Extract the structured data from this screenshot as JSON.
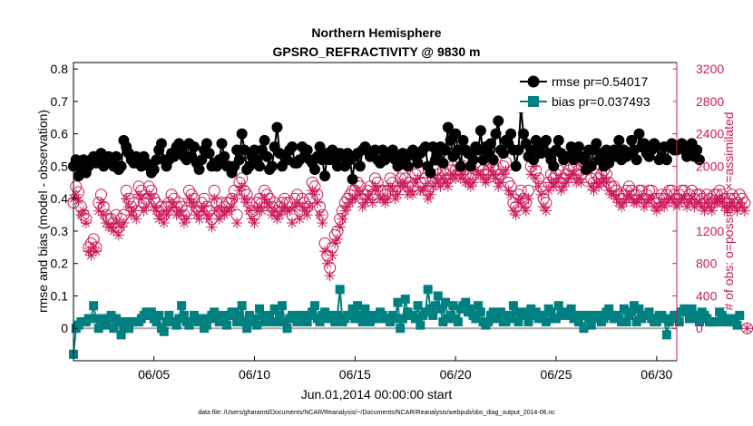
{
  "chart_data": {
    "type": "line",
    "title": "Northern Hemisphere",
    "subtitle": "GPSRO_REFRACTIVITY @ 9830 m",
    "xlabel": "Jun.01,2014 00:00:00 start",
    "ylabel": "rmse and bias (model - observation)",
    "ylabel_right": "# of obs: o=possible; ×=assimilated",
    "footnote": "data file: /Users/gharamti/Documents/NCAR/Reanalysis/~/Documents/NCAR/Reanalysis/webpub/obs_diag_output_2014-06.nc",
    "xlim": [
      1,
      31
    ],
    "ylim": [
      -0.1,
      0.82
    ],
    "ylim_right": [
      -400,
      3280
    ],
    "x_ticks": [
      {
        "value": 5,
        "label": "06/05"
      },
      {
        "value": 10,
        "label": "06/10"
      },
      {
        "value": 15,
        "label": "06/15"
      },
      {
        "value": 20,
        "label": "06/20"
      },
      {
        "value": 25,
        "label": "06/25"
      },
      {
        "value": 30,
        "label": "06/30"
      }
    ],
    "y_ticks": [
      "0",
      "0.1",
      "0.2",
      "0.3",
      "0.4",
      "0.5",
      "0.6",
      "0.7",
      "0.8"
    ],
    "y_ticks_right": [
      "0",
      "400",
      "800",
      "1200",
      "1600",
      "2000",
      "2400",
      "2800",
      "3200"
    ],
    "legend": [
      {
        "key": "rmse",
        "label": "rmse pr=0.54017"
      },
      {
        "key": "bias",
        "label": "bias pr=0.037493"
      }
    ],
    "legend_position": "top-right",
    "colors": {
      "rmse": "#000000",
      "bias": "#008080",
      "obs": "#cc1a5b",
      "zero": "#aaaaaa"
    },
    "x_start": 1.0,
    "x_step": 0.125,
    "series": [
      {
        "name": "rmse",
        "axis": "left",
        "marker": "circle",
        "values": [
          0.5,
          0.52,
          0.47,
          0.5,
          0.52,
          0.48,
          0.5,
          0.52,
          0.53,
          0.51,
          0.52,
          0.54,
          0.5,
          0.51,
          0.53,
          0.52,
          0.5,
          0.53,
          0.49,
          0.5,
          0.58,
          0.56,
          0.54,
          0.52,
          0.51,
          0.53,
          0.52,
          0.5,
          0.53,
          0.51,
          0.5,
          0.48,
          0.49,
          0.52,
          0.55,
          0.57,
          0.52,
          0.5,
          0.52,
          0.54,
          0.53,
          0.56,
          0.57,
          0.55,
          0.53,
          0.52,
          0.57,
          0.53,
          0.56,
          0.51,
          0.49,
          0.52,
          0.55,
          0.57,
          0.54,
          0.5,
          0.51,
          0.5,
          0.52,
          0.57,
          0.53,
          0.5,
          0.5,
          0.48,
          0.5,
          0.55,
          0.52,
          0.6,
          0.55,
          0.49,
          0.5,
          0.53,
          0.55,
          0.52,
          0.5,
          0.55,
          0.58,
          0.53,
          0.49,
          0.5,
          0.56,
          0.62,
          0.54,
          0.5,
          0.53,
          0.52,
          0.55,
          0.56,
          0.51,
          0.51,
          0.52,
          0.56,
          0.53,
          0.55,
          0.52,
          0.51,
          0.49,
          0.53,
          0.56,
          0.52,
          0.47,
          0.54,
          0.52,
          0.55,
          0.53,
          0.5,
          0.54,
          0.53,
          0.5,
          0.54,
          0.52,
          0.46,
          0.53,
          0.54,
          0.5,
          0.55,
          0.56,
          0.55,
          0.53,
          0.54,
          0.55,
          0.52,
          0.51,
          0.55,
          0.52,
          0.53,
          0.54,
          0.55,
          0.52,
          0.5,
          0.53,
          0.54,
          0.52,
          0.5,
          0.54,
          0.55,
          0.53,
          0.51,
          0.54,
          0.55,
          0.56,
          0.5,
          0.48,
          0.56,
          0.52,
          0.54,
          0.56,
          0.51,
          0.55,
          0.62,
          0.58,
          0.53,
          0.6,
          0.55,
          0.5,
          0.58,
          0.55,
          0.54,
          0.5,
          0.52,
          0.56,
          0.55,
          0.61,
          0.52,
          0.56,
          0.54,
          0.57,
          0.52,
          0.6,
          0.64,
          0.55,
          0.54,
          0.58,
          0.57,
          0.6,
          0.55,
          0.5,
          0.55,
          0.68,
          0.6,
          0.57,
          0.53,
          0.55,
          0.52,
          0.58,
          0.55,
          0.54,
          0.57,
          0.58,
          0.54,
          0.52,
          0.5,
          0.55,
          0.58,
          0.54,
          0.52,
          0.53,
          0.53,
          0.56,
          0.52,
          0.54,
          0.56,
          0.53,
          0.52,
          0.49,
          0.55,
          0.5,
          0.55,
          0.57,
          0.52,
          0.54,
          0.5,
          0.55,
          0.51,
          0.53,
          0.55,
          0.53,
          0.58,
          0.52,
          0.55,
          0.53,
          0.54,
          0.58,
          0.55,
          0.52,
          0.6,
          0.56,
          0.57,
          0.54,
          0.53,
          0.55,
          0.57,
          0.56,
          0.52,
          0.53,
          0.56,
          0.52,
          0.56,
          0.57,
          0.55,
          0.55,
          0.56,
          0.57,
          0.55,
          0.53,
          0.54,
          0.57,
          0.53,
          0.55,
          0.52
        ]
      },
      {
        "name": "bias",
        "axis": "left",
        "marker": "square",
        "values": [
          -0.08,
          0.0,
          0.01,
          0.02,
          0.02,
          0.02,
          0.03,
          0.03,
          0.07,
          0.03,
          0.0,
          0.03,
          0.02,
          0.01,
          0.03,
          0.04,
          0.0,
          0.03,
          0.02,
          -0.02,
          0.0,
          0.02,
          0.0,
          0.02,
          0.02,
          0.02,
          0.02,
          0.03,
          0.04,
          0.05,
          0.04,
          0.05,
          0.03,
          0.02,
          0.04,
          0.0,
          -0.01,
          0.02,
          0.04,
          0.02,
          0.02,
          0.01,
          0.03,
          0.07,
          0.04,
          0.02,
          0.01,
          0.02,
          0.04,
          0.03,
          0.02,
          0.03,
          0.0,
          0.01,
          0.03,
          0.04,
          0.05,
          0.03,
          0.02,
          0.04,
          0.03,
          0.01,
          0.04,
          0.05,
          0.05,
          0.02,
          0.04,
          0.07,
          0.02,
          0.0,
          0.04,
          0.02,
          0.03,
          0.01,
          0.06,
          0.04,
          0.02,
          0.03,
          0.04,
          0.02,
          0.06,
          0.02,
          0.04,
          0.07,
          0.02,
          0.0,
          0.03,
          0.04,
          0.03,
          0.02,
          0.04,
          0.04,
          0.02,
          0.02,
          0.04,
          0.05,
          0.07,
          0.03,
          0.02,
          0.04,
          0.05,
          0.03,
          0.04,
          0.04,
          0.02,
          0.04,
          0.12,
          0.02,
          0.03,
          0.04,
          0.04,
          0.06,
          0.03,
          0.07,
          0.04,
          0.02,
          0.06,
          0.04,
          0.02,
          0.04,
          0.03,
          0.03,
          0.05,
          0.04,
          0.03,
          0.03,
          0.02,
          0.04,
          0.03,
          0.08,
          0.0,
          0.03,
          0.09,
          0.05,
          0.04,
          0.04,
          0.03,
          0.07,
          0.01,
          0.04,
          0.05,
          0.12,
          0.06,
          0.04,
          0.07,
          0.1,
          0.06,
          0.02,
          0.08,
          0.03,
          0.04,
          0.07,
          0.03,
          0.02,
          0.06,
          0.07,
          0.08,
          0.05,
          0.06,
          0.04,
          0.03,
          0.07,
          0.05,
          0.02,
          0.01,
          0.02,
          0.04,
          0.05,
          0.03,
          0.04,
          0.05,
          0.02,
          0.02,
          0.04,
          0.03,
          0.07,
          0.05,
          0.02,
          0.04,
          0.05,
          0.04,
          0.02,
          0.06,
          0.04,
          0.05,
          0.03,
          0.04,
          0.04,
          0.02,
          0.06,
          0.05,
          0.03,
          0.03,
          0.07,
          0.04,
          0.05,
          0.05,
          0.04,
          0.06,
          0.03,
          0.04,
          0.02,
          0.04,
          0.0,
          0.04,
          0.03,
          0.01,
          0.04,
          0.03,
          0.04,
          0.02,
          0.03,
          0.05,
          0.06,
          0.04,
          0.03,
          0.04,
          0.03,
          0.02,
          0.06,
          0.02,
          0.04,
          0.05,
          0.07,
          0.02,
          0.06,
          0.03,
          0.04,
          0.04,
          0.05,
          0.03,
          0.02,
          0.02,
          0.04,
          0.04,
          0.03,
          -0.02,
          0.02,
          0.03,
          0.04,
          0.04,
          0.02,
          0.05,
          0.06,
          0.05,
          0.03,
          0.06,
          0.04,
          0.03,
          0.02,
          0.05,
          0.04,
          0.03,
          0.02,
          0.02,
          0.02,
          0.02,
          0.05,
          0.04,
          0.02,
          0.03,
          0.02,
          0.02,
          0.03,
          0.01,
          0.04
        ]
      },
      {
        "name": "possible",
        "axis": "right",
        "marker": "open-circle",
        "values": [
          1550,
          1750,
          1680,
          1500,
          1400,
          1350,
          1000,
          1050,
          1100,
          1000,
          1550,
          1650,
          1500,
          1400,
          1350,
          1350,
          1300,
          1400,
          1250,
          1350,
          1400,
          1700,
          1600,
          1500,
          1550,
          1450,
          1750,
          1700,
          1550,
          1600,
          1750,
          1700,
          1600,
          1550,
          1450,
          1500,
          1400,
          1500,
          1550,
          1650,
          1600,
          1500,
          1550,
          1500,
          1400,
          1450,
          1700,
          1650,
          1600,
          1500,
          1450,
          1550,
          1600,
          1500,
          1450,
          1350,
          1700,
          1550,
          1450,
          1550,
          1500,
          1550,
          1550,
          1600,
          1700,
          1400,
          1800,
          1850,
          1700,
          1650,
          1550,
          1450,
          1400,
          1550,
          1600,
          1550,
          1700,
          1650,
          1600,
          1500,
          1550,
          1450,
          1500,
          1550,
          1600,
          1550,
          1550,
          1400,
          1600,
          1650,
          1450,
          1600,
          1550,
          1500,
          1600,
          1800,
          1750,
          1650,
          1500,
          1400,
          1050,
          900,
          750,
          1000,
          1150,
          1200,
          1350,
          1450,
          1550,
          1600,
          1650,
          1700,
          1700,
          1800,
          1750,
          1600,
          1650,
          1700,
          1750,
          1650,
          1850,
          1800,
          1700,
          1700,
          1650,
          1700,
          1850,
          1800,
          1700,
          1750,
          1850,
          1900,
          1850,
          1750,
          1800,
          1750,
          1900,
          1950,
          1800,
          1800,
          1850,
          1700,
          1750,
          1850,
          1950,
          1900,
          1850,
          1950,
          1900,
          1850,
          1950,
          2000,
          1950,
          2050,
          1950,
          2000,
          1900,
          1900,
          1850,
          1900,
          2050,
          2000,
          2000,
          1950,
          1900,
          1950,
          2050,
          2000,
          1950,
          1850,
          1900,
          2000,
          2050,
          1800,
          1750,
          1550,
          1500,
          1650,
          1700,
          1600,
          1550,
          1700,
          2000,
          2100,
          1950,
          1850,
          1750,
          1600,
          1550,
          1800,
          1900,
          1850,
          1900,
          1950,
          1800,
          1850,
          1900,
          1950,
          2000,
          2000,
          1900,
          1950,
          1900,
          2050,
          2100,
          2050,
          1850,
          1800,
          1900,
          1850,
          1900,
          1950,
          1900,
          1800,
          1750,
          1750,
          1700,
          1650,
          1600,
          1650,
          1700,
          1750,
          1700,
          1650,
          1650,
          1700,
          1700,
          1600,
          1650,
          1700,
          1700,
          1600,
          1550,
          1600,
          1650,
          1600,
          1650,
          1700,
          1700,
          1650,
          1600,
          1650,
          1700,
          1700,
          1600,
          1650,
          1700,
          1600,
          1650,
          1650,
          1600,
          1550,
          1650,
          1600,
          1550,
          1650,
          1650,
          1700,
          1650,
          1600,
          1550,
          1600,
          1650,
          1600,
          1550,
          1650,
          1600,
          1550,
          0
        ]
      },
      {
        "name": "assimilated",
        "axis": "right",
        "marker": "asterisk",
        "values": [
          1600,
          1650,
          1580,
          1400,
          1450,
          1300,
          950,
          900,
          1000,
          950,
          1450,
          1550,
          1400,
          1300,
          1250,
          1250,
          1200,
          1300,
          1150,
          1250,
          1300,
          1600,
          1500,
          1400,
          1450,
          1350,
          1650,
          1600,
          1450,
          1500,
          1650,
          1600,
          1500,
          1450,
          1350,
          1400,
          1300,
          1400,
          1450,
          1550,
          1500,
          1400,
          1450,
          1400,
          1300,
          1350,
          1600,
          1550,
          1500,
          1400,
          1350,
          1450,
          1500,
          1400,
          1350,
          1250,
          1600,
          1450,
          1350,
          1450,
          1400,
          1450,
          1450,
          1500,
          1600,
          1300,
          1700,
          1750,
          1600,
          1550,
          1450,
          1350,
          1300,
          1450,
          1500,
          1450,
          1600,
          1550,
          1500,
          1400,
          1450,
          1350,
          1400,
          1450,
          1500,
          1450,
          1450,
          1300,
          1500,
          1550,
          1350,
          1500,
          1450,
          1400,
          1500,
          1700,
          1650,
          1550,
          1400,
          1300,
          950,
          800,
          650,
          900,
          1050,
          1100,
          1250,
          1350,
          1450,
          1500,
          1550,
          1600,
          1600,
          1700,
          1650,
          1500,
          1550,
          1600,
          1650,
          1550,
          1750,
          1700,
          1600,
          1600,
          1550,
          1600,
          1750,
          1700,
          1600,
          1650,
          1750,
          1800,
          1750,
          1650,
          1700,
          1650,
          1800,
          1850,
          1700,
          1700,
          1750,
          1600,
          1650,
          1750,
          1850,
          1800,
          1750,
          1850,
          1800,
          1750,
          1850,
          1900,
          1850,
          1950,
          1850,
          1900,
          1800,
          1800,
          1750,
          1800,
          1950,
          1900,
          1900,
          1850,
          1800,
          1850,
          1950,
          1900,
          1850,
          1750,
          1800,
          1900,
          1950,
          1700,
          1650,
          1450,
          1400,
          1550,
          1600,
          1500,
          1450,
          1600,
          1900,
          2000,
          1850,
          1750,
          1650,
          1500,
          1450,
          1700,
          1800,
          1750,
          1800,
          1850,
          1700,
          1750,
          1800,
          1850,
          1900,
          1900,
          1800,
          1850,
          1800,
          1950,
          2000,
          1950,
          1750,
          1700,
          1800,
          1750,
          1800,
          1850,
          1800,
          1700,
          1650,
          1650,
          1600,
          1550,
          1500,
          1550,
          1600,
          1650,
          1600,
          1550,
          1550,
          1600,
          1600,
          1500,
          1550,
          1600,
          1600,
          1500,
          1450,
          1500,
          1550,
          1500,
          1550,
          1600,
          1600,
          1550,
          1500,
          1550,
          1600,
          1600,
          1500,
          1550,
          1600,
          1500,
          1550,
          1550,
          1500,
          1450,
          1550,
          1500,
          1450,
          1550,
          1550,
          1600,
          1550,
          1500,
          1450,
          1500,
          1550,
          1500,
          1450,
          1550,
          1500,
          1450,
          0
        ]
      }
    ]
  }
}
